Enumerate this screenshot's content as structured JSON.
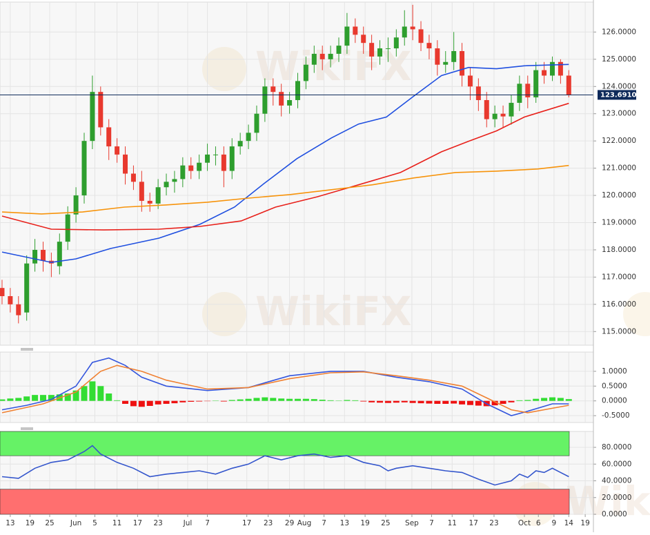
{
  "watermark": "WikiFX",
  "chart_data": [
    {
      "type": "candlestick",
      "xlim": [
        -0.25,
        72
      ],
      "ylim": [
        114.5,
        127.1
      ],
      "yticks": [
        {
          "value": 115,
          "label": "115.0000"
        },
        {
          "value": 116,
          "label": "116.0000"
        },
        {
          "value": 117,
          "label": "117.0000"
        },
        {
          "value": 118,
          "label": "118.0000"
        },
        {
          "value": 119,
          "label": "119.0000"
        },
        {
          "value": 120,
          "label": "120.0000"
        },
        {
          "value": 121,
          "label": "121.0000"
        },
        {
          "value": 122,
          "label": "122.0000"
        },
        {
          "value": 123,
          "label": "123.0000"
        },
        {
          "value": 124,
          "label": "124.0000"
        },
        {
          "value": 125,
          "label": "125.0000"
        },
        {
          "value": 126,
          "label": "126.0000"
        }
      ],
      "grid": true,
      "up_color": "#2e9e2e",
      "down_color": "#e8392e",
      "last_price": 123.691,
      "last_price_label": "123.6910",
      "last_price_color": "#0e2a5a",
      "open": [
        116.6,
        116.3,
        116.0,
        115.7,
        117.5,
        118.0,
        117.6,
        117.4,
        118.3,
        119.3,
        120.0,
        122.0,
        123.8,
        122.5,
        121.8,
        121.5,
        120.8,
        120.5,
        119.8,
        119.7,
        120.3,
        120.5,
        120.6,
        121.1,
        120.9,
        121.2,
        121.5,
        121.5,
        120.9,
        121.8,
        122.0,
        122.3,
        123.0,
        124.0,
        123.8,
        123.3,
        123.5,
        124.2,
        124.8,
        125.2,
        125.0,
        125.2,
        125.5,
        126.2,
        125.9,
        125.6,
        125.1,
        125.4,
        125.4,
        125.8,
        126.2,
        126.1,
        125.6,
        125.4,
        124.8,
        124.9,
        125.3,
        124.4,
        124.0,
        123.5,
        122.8,
        123.0,
        122.9,
        123.4,
        124.1,
        123.6,
        124.6,
        124.4,
        124.9,
        124.4
      ],
      "high": [
        116.9,
        116.6,
        116.3,
        117.8,
        118.4,
        118.3,
        117.9,
        118.6,
        119.6,
        120.3,
        122.3,
        124.4,
        124.0,
        122.8,
        122.1,
        121.8,
        121.1,
        120.9,
        120.1,
        120.6,
        120.8,
        120.9,
        121.4,
        121.4,
        121.5,
        121.9,
        121.8,
        121.8,
        122.1,
        122.3,
        122.6,
        123.3,
        124.3,
        124.3,
        124.1,
        123.8,
        124.5,
        125.1,
        125.5,
        125.5,
        125.5,
        125.8,
        126.7,
        126.5,
        126.2,
        125.9,
        125.7,
        125.8,
        126.1,
        126.8,
        127.0,
        126.4,
        125.9,
        125.7,
        125.3,
        126.0,
        125.6,
        124.7,
        124.3,
        123.8,
        123.3,
        123.3,
        123.7,
        124.4,
        124.4,
        124.9,
        124.9,
        125.1,
        125.0,
        124.6
      ],
      "low": [
        116.0,
        115.7,
        115.3,
        115.4,
        117.2,
        117.2,
        117.0,
        117.1,
        118.0,
        119.0,
        119.7,
        121.7,
        122.2,
        121.3,
        121.2,
        120.4,
        120.2,
        119.4,
        119.4,
        119.5,
        120.0,
        120.1,
        120.3,
        120.6,
        120.6,
        120.9,
        121.1,
        120.3,
        120.6,
        121.5,
        121.7,
        122.0,
        122.7,
        123.3,
        122.9,
        123.0,
        123.2,
        123.9,
        124.5,
        124.6,
        124.7,
        124.9,
        125.2,
        125.6,
        125.2,
        124.6,
        124.8,
        124.9,
        125.1,
        125.5,
        125.7,
        125.3,
        125.0,
        124.4,
        124.5,
        124.6,
        124.0,
        123.5,
        123.1,
        122.5,
        122.5,
        122.5,
        122.6,
        123.1,
        123.2,
        123.4,
        124.1,
        124.2,
        124.1,
        123.6
      ],
      "close": [
        116.3,
        116.0,
        115.6,
        117.5,
        118.0,
        117.6,
        117.5,
        118.3,
        119.3,
        120.0,
        122.0,
        123.8,
        122.5,
        121.8,
        121.5,
        120.8,
        120.5,
        119.8,
        119.7,
        120.3,
        120.5,
        120.6,
        121.1,
        120.9,
        121.2,
        121.5,
        121.5,
        120.9,
        121.8,
        122.0,
        122.3,
        123.0,
        124.0,
        123.8,
        123.3,
        123.5,
        124.2,
        124.8,
        125.2,
        125.0,
        125.2,
        125.5,
        126.2,
        125.9,
        125.6,
        125.1,
        125.4,
        125.4,
        125.8,
        126.2,
        126.1,
        125.6,
        125.4,
        124.8,
        124.9,
        125.3,
        124.4,
        124.0,
        123.5,
        122.8,
        123.0,
        122.9,
        123.4,
        124.1,
        123.6,
        124.6,
        124.4,
        124.9,
        124.4,
        123.69
      ],
      "series": [
        {
          "color": "#1f4fe0",
          "x": [
            0,
            6,
            9,
            13.2,
            19.1,
            24.1,
            28.3,
            31.7,
            35.9,
            40.1,
            43.4,
            46.8,
            50.1,
            53.5,
            56.8,
            60.2,
            63.6,
            69
          ],
          "values": [
            117.92,
            117.54,
            117.67,
            118.05,
            118.43,
            118.94,
            119.57,
            120.39,
            121.35,
            122.11,
            122.62,
            122.88,
            123.64,
            124.4,
            124.7,
            124.65,
            124.76,
            124.81
          ]
        },
        {
          "color": "#e8201a",
          "x": [
            0,
            6,
            12.4,
            19.1,
            24.1,
            29.1,
            33.3,
            38.4,
            43.4,
            48.5,
            53.5,
            56.8,
            60.2,
            63.6,
            69
          ],
          "values": [
            119.24,
            118.76,
            118.73,
            118.76,
            118.86,
            119.06,
            119.57,
            119.95,
            120.39,
            120.84,
            121.6,
            121.99,
            122.37,
            122.88,
            123.38
          ]
        },
        {
          "color": "#f7930a",
          "x": [
            0,
            4.8,
            9.8,
            14.9,
            19.9,
            25,
            30,
            35,
            40.1,
            45.1,
            50.1,
            55.2,
            60.2,
            65.2,
            69
          ],
          "values": [
            119.39,
            119.32,
            119.39,
            119.57,
            119.65,
            119.75,
            119.9,
            120.03,
            120.21,
            120.39,
            120.64,
            120.84,
            120.89,
            120.97,
            121.1
          ]
        }
      ]
    },
    {
      "type": "macd",
      "xlim": [
        -0.25,
        72
      ],
      "ylim": [
        -0.73,
        1.65
      ],
      "yticks": [
        {
          "value": -0.5,
          "label": "-0.5000"
        },
        {
          "value": 0,
          "label": "0.0000"
        },
        {
          "value": 0.5,
          "label": "0.5000"
        },
        {
          "value": 1,
          "label": "1.0000"
        }
      ],
      "grid": true,
      "positive_color": "#33dd33",
      "negative_color": "#ee1111",
      "histogram": [
        0.05,
        0.08,
        0.1,
        0.15,
        0.2,
        0.2,
        0.2,
        0.22,
        0.25,
        0.35,
        0.5,
        0.66,
        0.5,
        0.25,
        0.02,
        -0.1,
        -0.18,
        -0.2,
        -0.17,
        -0.12,
        -0.1,
        -0.08,
        -0.05,
        -0.03,
        -0.02,
        -0.01,
        0.01,
        -0.02,
        0.03,
        0.05,
        0.07,
        0.1,
        0.12,
        0.1,
        0.08,
        0.07,
        0.07,
        0.07,
        0.06,
        0.04,
        0.02,
        0.01,
        0.03,
        0.02,
        -0.02,
        -0.05,
        -0.06,
        -0.07,
        -0.06,
        -0.05,
        -0.07,
        -0.08,
        -0.09,
        -0.1,
        -0.1,
        -0.09,
        -0.12,
        -0.14,
        -0.16,
        -0.18,
        -0.15,
        -0.1,
        -0.05,
        0.02,
        0.03,
        0.07,
        0.1,
        0.12,
        0.1,
        0.06
      ],
      "series": [
        {
          "color": "#3355dd",
          "x": [
            0,
            3,
            6,
            9,
            11,
            13,
            15,
            17,
            20,
            25,
            30,
            35,
            40,
            44,
            48,
            52,
            56,
            59,
            62,
            64,
            67,
            69
          ],
          "values": [
            -0.3,
            -0.15,
            0.05,
            0.5,
            1.3,
            1.45,
            1.2,
            0.8,
            0.5,
            0.35,
            0.45,
            0.85,
            1.0,
            1.0,
            0.8,
            0.65,
            0.4,
            -0.1,
            -0.5,
            -0.35,
            -0.1,
            -0.1
          ]
        },
        {
          "color": "#f08030",
          "x": [
            0,
            5,
            9,
            12,
            14,
            17,
            20,
            25,
            30,
            35,
            40,
            44,
            48,
            52,
            56,
            59,
            62,
            64,
            67,
            69
          ],
          "values": [
            -0.4,
            -0.1,
            0.3,
            1.0,
            1.2,
            1.0,
            0.7,
            0.4,
            0.45,
            0.75,
            0.95,
            0.98,
            0.85,
            0.7,
            0.5,
            0.1,
            -0.3,
            -0.4,
            -0.25,
            -0.15
          ]
        }
      ]
    },
    {
      "type": "line",
      "xlim": [
        -0.25,
        72
      ],
      "ylim": [
        0,
        99
      ],
      "yticks": [
        {
          "value": 0,
          "label": "0.0000"
        },
        {
          "value": 20,
          "label": "20.0000"
        },
        {
          "value": 40,
          "label": "40.0000"
        },
        {
          "value": 60,
          "label": "60.0000"
        },
        {
          "value": 80,
          "label": "80.0000"
        }
      ],
      "grid": true,
      "zones": [
        {
          "above": 70,
          "color": "#66f266"
        },
        {
          "below": 30,
          "color": "#ff6f6f"
        }
      ],
      "xticks": [
        {
          "value": 1,
          "label": "13"
        },
        {
          "value": 3.4,
          "label": "19"
        },
        {
          "value": 5.8,
          "label": "25"
        },
        {
          "value": 9,
          "label": "Jun"
        },
        {
          "value": 11.3,
          "label": "5"
        },
        {
          "value": 14,
          "label": "11"
        },
        {
          "value": 16.5,
          "label": "17"
        },
        {
          "value": 19,
          "label": "23"
        },
        {
          "value": 22.6,
          "label": "Jul"
        },
        {
          "value": 25,
          "label": "7"
        },
        {
          "value": 29.8,
          "label": "17"
        },
        {
          "value": 32.4,
          "label": "23"
        },
        {
          "value": 35,
          "label": "29"
        },
        {
          "value": 36.8,
          "label": "Aug"
        },
        {
          "value": 39.2,
          "label": "7"
        },
        {
          "value": 41.7,
          "label": "13"
        },
        {
          "value": 44.2,
          "label": "19"
        },
        {
          "value": 46.7,
          "label": "25"
        },
        {
          "value": 49.9,
          "label": "Sep"
        },
        {
          "value": 52.3,
          "label": "7"
        },
        {
          "value": 54.8,
          "label": "11"
        },
        {
          "value": 57.4,
          "label": "17"
        },
        {
          "value": 59.9,
          "label": "23"
        },
        {
          "value": 63.6,
          "label": "Oct"
        },
        {
          "value": 65.3,
          "label": "6"
        },
        {
          "value": 67.2,
          "label": "9"
        },
        {
          "value": 69,
          "label": "14"
        },
        {
          "value": 71,
          "label": "19"
        }
      ],
      "series": [
        {
          "color": "#3355cc",
          "x": [
            0,
            2,
            4,
            6,
            8,
            10,
            11,
            12,
            14,
            16,
            18,
            20,
            22,
            24,
            26,
            28,
            30,
            32,
            34,
            36,
            38,
            40,
            42,
            44,
            46,
            47,
            48,
            50,
            52,
            54,
            56,
            58,
            60,
            62,
            63,
            64,
            65,
            66,
            67,
            68,
            69
          ],
          "values": [
            45,
            43,
            55,
            62,
            65,
            75,
            82,
            72,
            62,
            55,
            45,
            48,
            50,
            52,
            48,
            55,
            60,
            70,
            65,
            70,
            72,
            68,
            70,
            62,
            58,
            52,
            55,
            58,
            55,
            52,
            50,
            42,
            35,
            40,
            48,
            44,
            52,
            50,
            55,
            50,
            45
          ]
        }
      ]
    }
  ]
}
